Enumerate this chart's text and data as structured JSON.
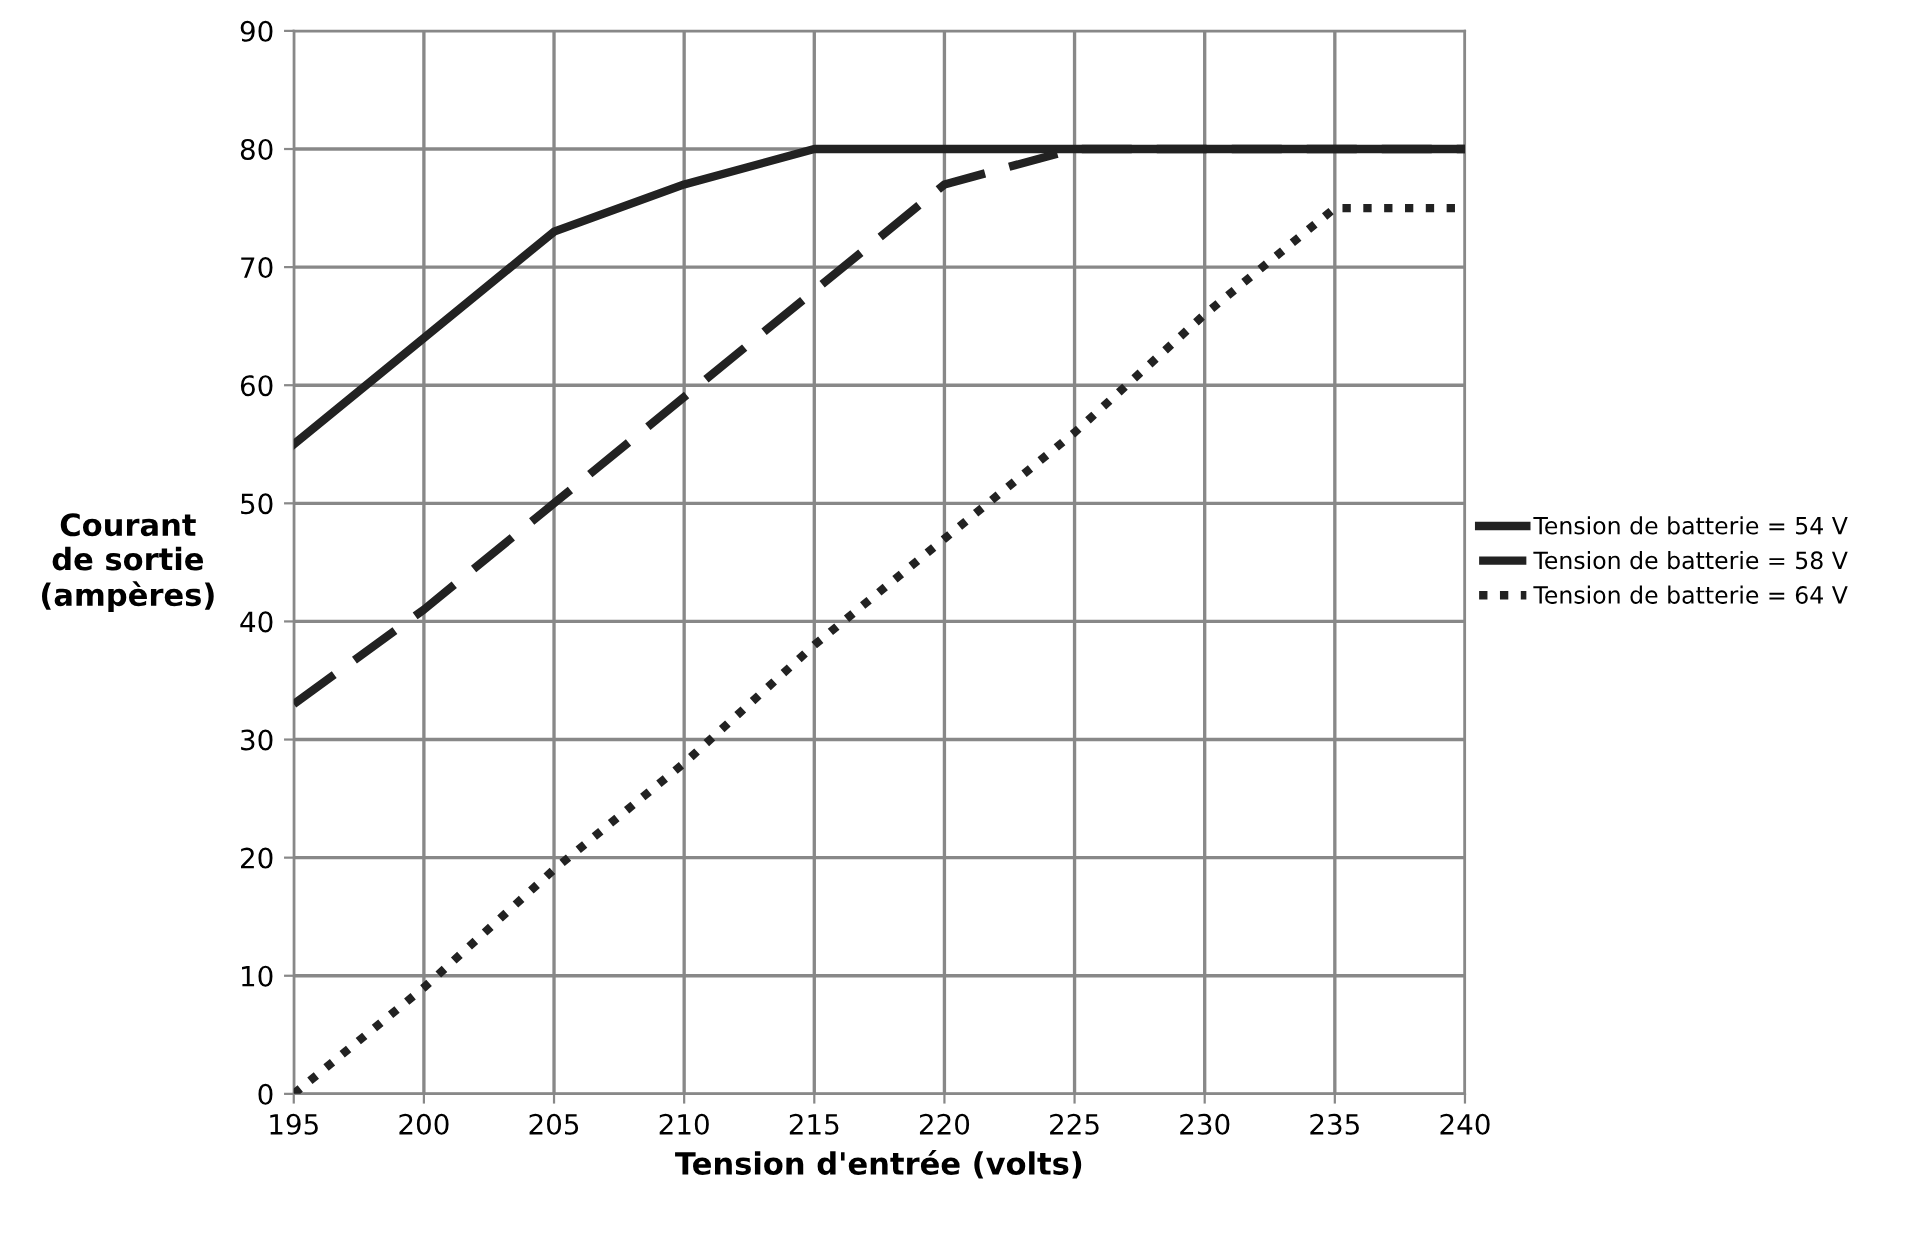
{
  "chart_data": {
    "type": "line",
    "xlabel": "Tension d'entrée (volts)",
    "ylabel": "Courant\nde sortie\n(ampères)",
    "xlim": [
      195,
      240
    ],
    "xticks": [
      195,
      200,
      205,
      210,
      215,
      220,
      225,
      230,
      235,
      240
    ],
    "ylim": [
      0,
      90
    ],
    "yticks": [
      0,
      10,
      20,
      30,
      40,
      50,
      60,
      70,
      80,
      90
    ],
    "grid": true,
    "legend": "right",
    "marker": "none",
    "series": [
      {
        "name": "Tension de batterie = 54 V",
        "color": "#222222",
        "line_style": "solid",
        "x": [
          195,
          200,
          205,
          210,
          215,
          240
        ],
        "values": [
          55,
          64,
          73,
          77,
          80,
          80
        ]
      },
      {
        "name": "Tension de batterie = 58 V",
        "color": "#222222",
        "line_style": "dashed",
        "x": [
          195,
          200,
          205,
          210,
          215,
          220,
          225,
          240
        ],
        "values": [
          33,
          41,
          50,
          59,
          68,
          77,
          80,
          80
        ]
      },
      {
        "name": "Tension de batterie = 64 V",
        "color": "#222222",
        "line_style": "dotted",
        "x": [
          195,
          200,
          205,
          210,
          215,
          220,
          225,
          230,
          235,
          240
        ],
        "values": [
          0,
          9,
          19,
          28,
          38,
          47,
          56,
          66,
          75,
          75
        ]
      }
    ]
  }
}
